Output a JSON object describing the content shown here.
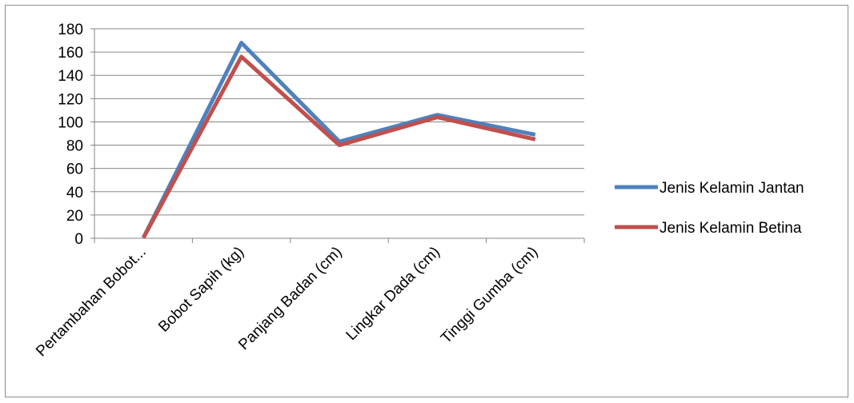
{
  "chart_data": {
    "type": "line",
    "title": "",
    "xlabel": "",
    "ylabel": "",
    "categories": [
      "Pertambahan Bobot...",
      "Bobot Sapih (kg)",
      "Panjang Badan (cm)",
      "Lingkar Dada (cm)",
      "Tinggi Gumba (cm)"
    ],
    "ylim": [
      0,
      180
    ],
    "yticks": [
      0,
      20,
      40,
      60,
      80,
      100,
      120,
      140,
      160,
      180
    ],
    "grid": true,
    "legend_position": "right",
    "series": [
      {
        "name": "Jenis Kelamin Jantan",
        "color": "#4f81bd",
        "values": [
          0.5,
          168,
          83,
          106,
          89
        ]
      },
      {
        "name": "Jenis Kelamin Betina",
        "color": "#c0504d",
        "values": [
          0.4,
          156,
          80,
          104,
          85
        ]
      }
    ]
  }
}
